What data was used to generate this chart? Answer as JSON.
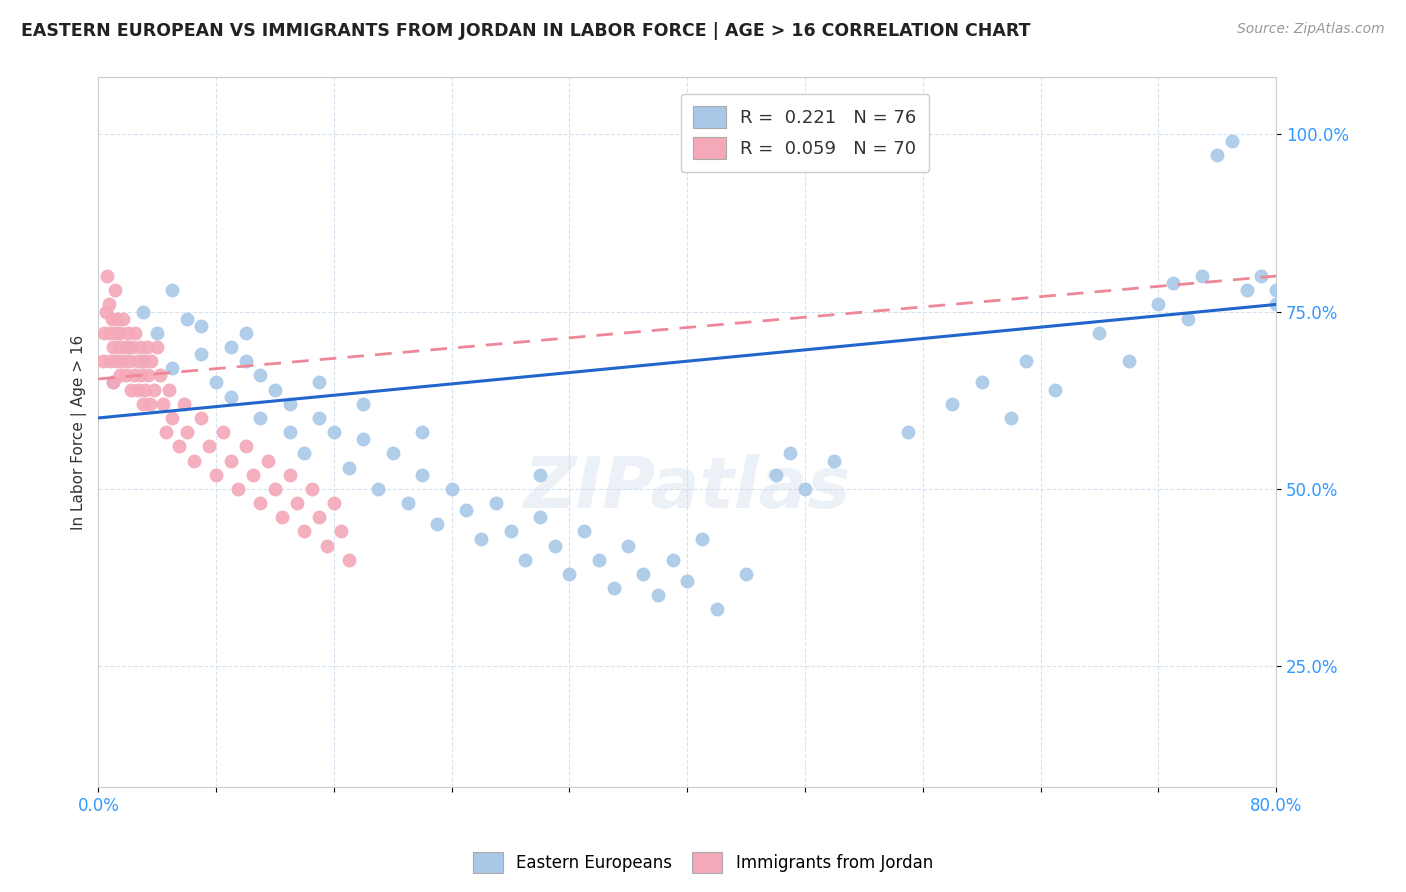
{
  "title": "EASTERN EUROPEAN VS IMMIGRANTS FROM JORDAN IN LABOR FORCE | AGE > 16 CORRELATION CHART",
  "source": "Source: ZipAtlas.com",
  "ylabel": "In Labor Force | Age > 16",
  "xlim": [
    0.0,
    0.8
  ],
  "ylim": [
    0.08,
    1.08
  ],
  "xticks": [
    0.0,
    0.08,
    0.16,
    0.24,
    0.32,
    0.4,
    0.48,
    0.56,
    0.64,
    0.72,
    0.8
  ],
  "xticklabels": [
    "0.0%",
    "",
    "",
    "",
    "",
    "",
    "",
    "",
    "",
    "",
    "80.0%"
  ],
  "ytick_positions": [
    0.25,
    0.5,
    0.75,
    1.0
  ],
  "yticklabels": [
    "25.0%",
    "50.0%",
    "75.0%",
    "100.0%"
  ],
  "R_blue": 0.221,
  "N_blue": 76,
  "R_pink": 0.059,
  "N_pink": 70,
  "blue_color": "#a8c8e8",
  "pink_color": "#f4a8b8",
  "trend_blue": "#2266cc",
  "trend_pink": "#ee8899",
  "watermark": "ZIPatlas",
  "blue_scatter_x": [
    0.01,
    0.02,
    0.03,
    0.03,
    0.04,
    0.05,
    0.05,
    0.06,
    0.07,
    0.07,
    0.08,
    0.09,
    0.09,
    0.1,
    0.1,
    0.11,
    0.11,
    0.12,
    0.13,
    0.13,
    0.14,
    0.15,
    0.15,
    0.16,
    0.17,
    0.18,
    0.18,
    0.19,
    0.2,
    0.21,
    0.22,
    0.22,
    0.23,
    0.24,
    0.25,
    0.26,
    0.27,
    0.28,
    0.29,
    0.3,
    0.3,
    0.31,
    0.32,
    0.33,
    0.34,
    0.35,
    0.36,
    0.37,
    0.38,
    0.39,
    0.4,
    0.41,
    0.42,
    0.44,
    0.46,
    0.47,
    0.48,
    0.5,
    0.55,
    0.58,
    0.6,
    0.62,
    0.63,
    0.65,
    0.68,
    0.7,
    0.72,
    0.73,
    0.74,
    0.75,
    0.76,
    0.77,
    0.78,
    0.79,
    0.8,
    0.8
  ],
  "blue_scatter_y": [
    0.65,
    0.7,
    0.68,
    0.75,
    0.72,
    0.78,
    0.67,
    0.74,
    0.69,
    0.73,
    0.65,
    0.7,
    0.63,
    0.68,
    0.72,
    0.66,
    0.6,
    0.64,
    0.58,
    0.62,
    0.55,
    0.6,
    0.65,
    0.58,
    0.53,
    0.57,
    0.62,
    0.5,
    0.55,
    0.48,
    0.52,
    0.58,
    0.45,
    0.5,
    0.47,
    0.43,
    0.48,
    0.44,
    0.4,
    0.46,
    0.52,
    0.42,
    0.38,
    0.44,
    0.4,
    0.36,
    0.42,
    0.38,
    0.35,
    0.4,
    0.37,
    0.43,
    0.33,
    0.38,
    0.52,
    0.55,
    0.5,
    0.54,
    0.58,
    0.62,
    0.65,
    0.6,
    0.68,
    0.64,
    0.72,
    0.68,
    0.76,
    0.79,
    0.74,
    0.8,
    0.97,
    0.99,
    0.78,
    0.8,
    0.76,
    0.78
  ],
  "pink_scatter_x": [
    0.003,
    0.004,
    0.005,
    0.006,
    0.007,
    0.008,
    0.008,
    0.009,
    0.01,
    0.01,
    0.011,
    0.012,
    0.012,
    0.013,
    0.014,
    0.015,
    0.015,
    0.016,
    0.017,
    0.018,
    0.019,
    0.02,
    0.021,
    0.022,
    0.023,
    0.024,
    0.025,
    0.026,
    0.027,
    0.028,
    0.029,
    0.03,
    0.031,
    0.032,
    0.033,
    0.034,
    0.035,
    0.036,
    0.038,
    0.04,
    0.042,
    0.044,
    0.046,
    0.048,
    0.05,
    0.055,
    0.058,
    0.06,
    0.065,
    0.07,
    0.075,
    0.08,
    0.085,
    0.09,
    0.095,
    0.1,
    0.105,
    0.11,
    0.115,
    0.12,
    0.125,
    0.13,
    0.135,
    0.14,
    0.145,
    0.15,
    0.155,
    0.16,
    0.165,
    0.17
  ],
  "pink_scatter_y": [
    0.68,
    0.72,
    0.75,
    0.8,
    0.76,
    0.72,
    0.68,
    0.74,
    0.7,
    0.65,
    0.78,
    0.72,
    0.68,
    0.74,
    0.7,
    0.66,
    0.72,
    0.68,
    0.74,
    0.7,
    0.66,
    0.72,
    0.68,
    0.64,
    0.7,
    0.66,
    0.72,
    0.68,
    0.64,
    0.7,
    0.66,
    0.62,
    0.68,
    0.64,
    0.7,
    0.66,
    0.62,
    0.68,
    0.64,
    0.7,
    0.66,
    0.62,
    0.58,
    0.64,
    0.6,
    0.56,
    0.62,
    0.58,
    0.54,
    0.6,
    0.56,
    0.52,
    0.58,
    0.54,
    0.5,
    0.56,
    0.52,
    0.48,
    0.54,
    0.5,
    0.46,
    0.52,
    0.48,
    0.44,
    0.5,
    0.46,
    0.42,
    0.48,
    0.44,
    0.4
  ]
}
